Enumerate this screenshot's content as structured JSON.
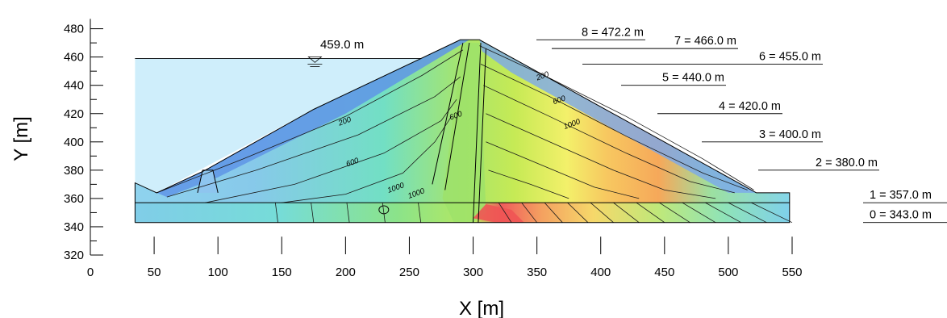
{
  "axes": {
    "x_title": "X [m]",
    "y_title": "Y [m]",
    "x_ticks": [
      "0",
      "50",
      "100",
      "150",
      "200",
      "250",
      "300",
      "350",
      "400",
      "450",
      "500",
      "550"
    ],
    "y_ticks": [
      "320",
      "340",
      "360",
      "380",
      "400",
      "420",
      "440",
      "460",
      "480"
    ],
    "x_range": [
      0,
      550
    ],
    "y_range": [
      320,
      480
    ]
  },
  "water_level": {
    "label": "459.0 m",
    "elevation": 459.0
  },
  "construction_levels": [
    {
      "label": "8 = 472.2 m",
      "elevation": 472.2
    },
    {
      "label": "7 = 466.0 m",
      "elevation": 466.0
    },
    {
      "label": "6 = 455.0 m",
      "elevation": 455.0
    },
    {
      "label": "5 = 440.0 m",
      "elevation": 440.0
    },
    {
      "label": "4 = 420.0 m",
      "elevation": 420.0
    },
    {
      "label": "3 = 400.0 m",
      "elevation": 400.0
    },
    {
      "label": "2 = 380.0 m",
      "elevation": 380.0
    },
    {
      "label": "1 = 357.0 m",
      "elevation": 357.0
    },
    {
      "label": "0 = 343.0 m",
      "elevation": 343.0
    }
  ],
  "contour_labels": [
    {
      "text": "200",
      "x": 200,
      "y": 413
    },
    {
      "text": "600",
      "x": 206,
      "y": 384
    },
    {
      "text": "1000",
      "x": 240,
      "y": 366
    },
    {
      "text": "600",
      "x": 287,
      "y": 417
    },
    {
      "text": "1000",
      "x": 256,
      "y": 362
    },
    {
      "text": "200",
      "x": 355,
      "y": 445
    },
    {
      "text": "600",
      "x": 368,
      "y": 428
    },
    {
      "text": "1000",
      "x": 378,
      "y": 411
    }
  ],
  "colors": {
    "reservoir": "#cfeefb",
    "high": "#f06060",
    "low": "#6b9fe8"
  }
}
